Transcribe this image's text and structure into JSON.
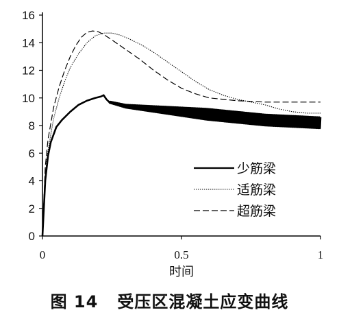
{
  "chart_data": {
    "type": "line",
    "xlim": [
      0,
      1
    ],
    "ylim": [
      0,
      16
    ],
    "xticks": [
      0,
      0.5,
      1
    ],
    "xtick_labels": [
      "0",
      "0.5",
      "1"
    ],
    "yticks": [
      0,
      2,
      4,
      6,
      8,
      10,
      12,
      14,
      16
    ],
    "ytick_labels": [
      "0",
      "2",
      "4",
      "6",
      "8",
      "10",
      "12",
      "14",
      "16"
    ],
    "xlabel": "时间",
    "ylabel": "",
    "grid": false,
    "legend_position": "center-right",
    "series": [
      {
        "name": "少筋梁",
        "style": "solid-thick",
        "oscillating": true,
        "x": [
          0,
          0.01,
          0.02,
          0.03,
          0.05,
          0.07,
          0.1,
          0.13,
          0.16,
          0.19,
          0.21,
          0.22,
          0.23,
          0.24,
          0.26,
          0.3,
          0.35,
          0.4,
          0.45,
          0.5,
          0.55,
          0.6,
          0.65,
          0.7,
          0.75,
          0.8,
          0.85,
          0.9,
          0.95,
          1.0
        ],
        "y": [
          0,
          4.0,
          5.8,
          6.8,
          7.9,
          8.4,
          9.0,
          9.5,
          9.8,
          10.0,
          10.1,
          10.2,
          9.9,
          9.7,
          9.6,
          9.4,
          9.3,
          9.2,
          9.1,
          9.0,
          8.9,
          8.8,
          8.7,
          8.6,
          8.5,
          8.4,
          8.35,
          8.3,
          8.25,
          8.2
        ]
      },
      {
        "name": "适筋梁",
        "style": "dotted",
        "x": [
          0,
          0.01,
          0.02,
          0.04,
          0.06,
          0.08,
          0.1,
          0.13,
          0.16,
          0.19,
          0.22,
          0.25,
          0.28,
          0.32,
          0.36,
          0.4,
          0.45,
          0.5,
          0.55,
          0.6,
          0.65,
          0.7,
          0.75,
          0.8,
          0.85,
          0.9,
          0.95,
          1.0
        ],
        "y": [
          0,
          4.5,
          6.2,
          8.5,
          10.0,
          11.2,
          12.2,
          13.2,
          14.0,
          14.5,
          14.7,
          14.7,
          14.55,
          14.2,
          13.8,
          13.3,
          12.6,
          11.9,
          11.2,
          10.6,
          10.2,
          9.9,
          9.7,
          9.5,
          9.2,
          9.0,
          8.9,
          8.9
        ]
      },
      {
        "name": "超筋梁",
        "style": "dashed",
        "x": [
          0,
          0.01,
          0.02,
          0.04,
          0.06,
          0.08,
          0.1,
          0.12,
          0.14,
          0.16,
          0.18,
          0.2,
          0.22,
          0.25,
          0.3,
          0.35,
          0.4,
          0.45,
          0.5,
          0.55,
          0.6,
          0.65,
          0.7,
          0.75,
          0.8,
          0.85,
          0.9,
          0.95,
          1.0
        ],
        "y": [
          0,
          5.0,
          7.0,
          9.3,
          10.8,
          12.0,
          13.0,
          13.8,
          14.4,
          14.75,
          14.85,
          14.8,
          14.6,
          14.2,
          13.5,
          12.8,
          12.0,
          11.3,
          10.7,
          10.3,
          10.0,
          9.9,
          9.8,
          9.75,
          9.7,
          9.7,
          9.7,
          9.7,
          9.7
        ]
      }
    ],
    "caption": "图 14   受压区混凝土应变曲线"
  }
}
